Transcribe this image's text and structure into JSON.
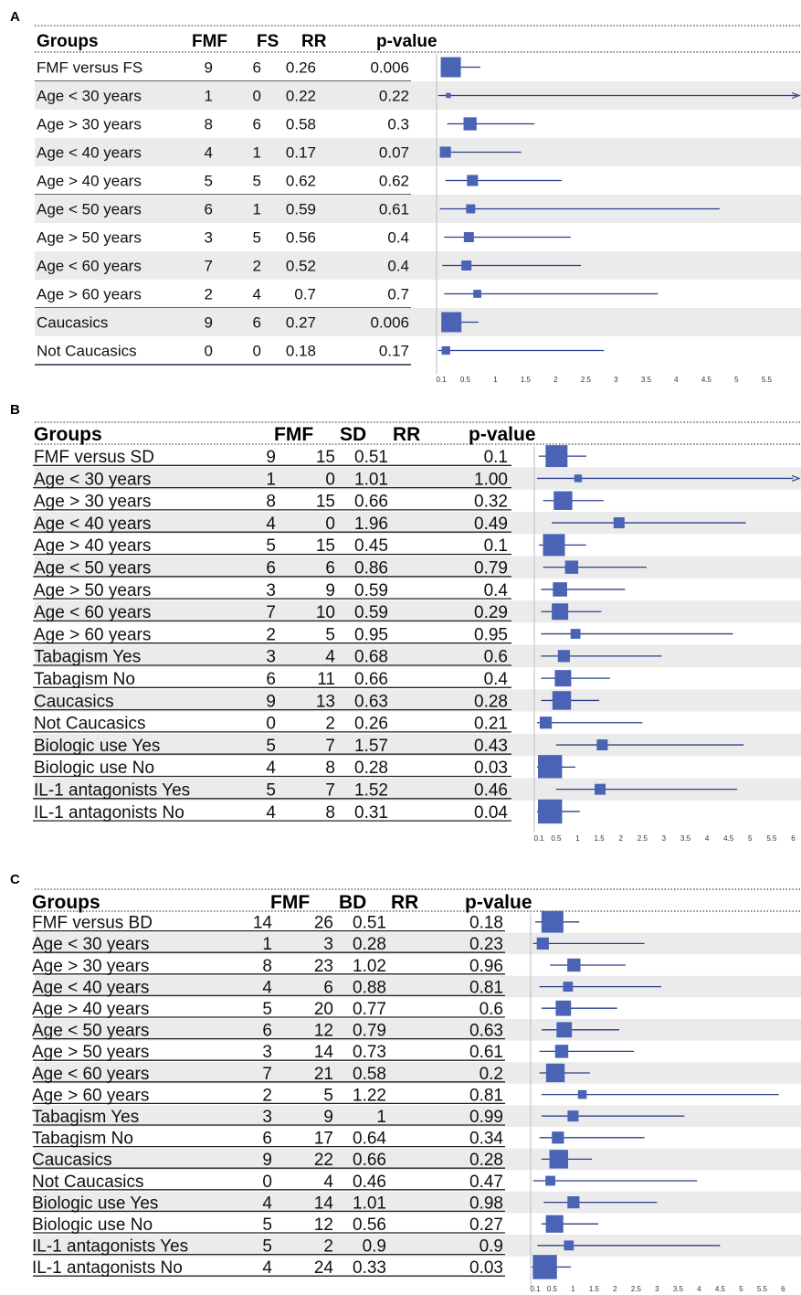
{
  "chart_data": [
    {
      "panel": "A",
      "type": "forest",
      "columns": [
        "Groups",
        "FMF",
        "FS",
        "RR",
        "p-value"
      ],
      "rows": [
        {
          "group": "FMF versus FS",
          "fmf": "9",
          "comp": "6",
          "rr": "0.26",
          "p": "0.006",
          "lo": 0.1,
          "hi": 0.75,
          "w": 1.0
        },
        {
          "group": "Age < 30 years",
          "fmf": "1",
          "comp": "0",
          "rr": "0.22",
          "p": "0.22",
          "lo": 0.05,
          "hi": 6.0,
          "w": 0.25,
          "arrow": true
        },
        {
          "group": "Age > 30 years",
          "fmf": "8",
          "comp": "6",
          "rr": "0.58",
          "p": "0.3",
          "lo": 0.2,
          "hi": 1.65,
          "w": 0.65
        },
        {
          "group": "Age < 40 years",
          "fmf": "4",
          "comp": "1",
          "rr": "0.17",
          "p": "0.07",
          "lo": 0.1,
          "hi": 1.43,
          "w": 0.55
        },
        {
          "group": "Age > 40 years",
          "fmf": "5",
          "comp": "5",
          "rr": "0.62",
          "p": "0.62",
          "lo": 0.17,
          "hi": 2.1,
          "w": 0.55
        },
        {
          "group": "Age < 50 years",
          "fmf": "6",
          "comp": "1",
          "rr": "0.59",
          "p": "0.61",
          "lo": 0.08,
          "hi": 4.72,
          "w": 0.45
        },
        {
          "group": "Age > 50 years",
          "fmf": "3",
          "comp": "5",
          "rr": "0.56",
          "p": "0.4",
          "lo": 0.15,
          "hi": 2.25,
          "w": 0.5
        },
        {
          "group": "Age < 60 years",
          "fmf": "7",
          "comp": "2",
          "rr": "0.52",
          "p": "0.4",
          "lo": 0.12,
          "hi": 2.42,
          "w": 0.5
        },
        {
          "group": "Age > 60 years",
          "fmf": "2",
          "comp": "4",
          "rr": "0.7",
          "p": "0.7",
          "lo": 0.15,
          "hi": 3.7,
          "w": 0.4
        },
        {
          "group": "Caucasics",
          "fmf": "9",
          "comp": "6",
          "rr": "0.27",
          "p": "0.006",
          "lo": 0.1,
          "hi": 0.72,
          "w": 1.0
        },
        {
          "group": "Not Caucasics",
          "fmf": "0",
          "comp": "0",
          "rr": "0.18",
          "p": "0.17",
          "lo": 0.05,
          "hi": 2.8,
          "w": 0.42
        }
      ],
      "ticks": [
        "0.1",
        "0.5",
        "1",
        "1.5",
        "2",
        "2.5",
        "3",
        "3.5",
        "4",
        "4.5",
        "5",
        "5.5"
      ],
      "tick_values": [
        0.1,
        0.5,
        1,
        1.5,
        2,
        2.5,
        3,
        3.5,
        4,
        4.5,
        5,
        5.5
      ],
      "xlim": [
        0,
        6
      ],
      "ref_line": 0.1,
      "style": "light"
    },
    {
      "panel": "B",
      "type": "forest",
      "columns": [
        "Groups",
        "FMF",
        "SD",
        "RR",
        "p-value"
      ],
      "rows": [
        {
          "group": "FMF versus SD",
          "fmf": "9",
          "comp": "15",
          "rr": "0.51",
          "p": "0.1",
          "lo": 0.1,
          "hi": 1.2,
          "w": 1.0
        },
        {
          "group": "Age < 30 years",
          "fmf": "1",
          "comp": "0",
          "rr": "1.01",
          "p": "1.00",
          "lo": 0.05,
          "hi": 6.0,
          "w": 0.35,
          "arrow": true
        },
        {
          "group": "Age > 30 years",
          "fmf": "8",
          "comp": "15",
          "rr": "0.66",
          "p": "0.32",
          "lo": 0.2,
          "hi": 1.6,
          "w": 0.85
        },
        {
          "group": "Age < 40 years",
          "fmf": "4",
          "comp": "0",
          "rr": "1.96",
          "p": "0.49",
          "lo": 0.4,
          "hi": 4.9,
          "w": 0.5
        },
        {
          "group": "Age > 40 years",
          "fmf": "5",
          "comp": "15",
          "rr": "0.45",
          "p": "0.1",
          "lo": 0.1,
          "hi": 1.2,
          "w": 1.0
        },
        {
          "group": "Age < 50 years",
          "fmf": "6",
          "comp": "6",
          "rr": "0.86",
          "p": "0.79",
          "lo": 0.2,
          "hi": 2.6,
          "w": 0.6
        },
        {
          "group": "Age > 50 years",
          "fmf": "3",
          "comp": "9",
          "rr": "0.59",
          "p": "0.4",
          "lo": 0.15,
          "hi": 2.1,
          "w": 0.65
        },
        {
          "group": "Age < 60 years",
          "fmf": "7",
          "comp": "10",
          "rr": "0.59",
          "p": "0.29",
          "lo": 0.15,
          "hi": 1.55,
          "w": 0.75
        },
        {
          "group": "Age > 60 years",
          "fmf": "2",
          "comp": "5",
          "rr": "0.95",
          "p": "0.95",
          "lo": 0.15,
          "hi": 4.6,
          "w": 0.45
        },
        {
          "group": "Tabagism Yes",
          "fmf": "3",
          "comp": "4",
          "rr": "0.68",
          "p": "0.6",
          "lo": 0.15,
          "hi": 2.95,
          "w": 0.55
        },
        {
          "group": "Tabagism No",
          "fmf": "6",
          "comp": "11",
          "rr": "0.66",
          "p": "0.4",
          "lo": 0.15,
          "hi": 1.75,
          "w": 0.75
        },
        {
          "group": "Caucasics",
          "fmf": "9",
          "comp": "13",
          "rr": "0.63",
          "p": "0.28",
          "lo": 0.15,
          "hi": 1.5,
          "w": 0.85
        },
        {
          "group": "Not Caucasics",
          "fmf": "0",
          "comp": "2",
          "rr": "0.26",
          "p": "0.21",
          "lo": 0.05,
          "hi": 2.5,
          "w": 0.55
        },
        {
          "group": "Biologic use Yes",
          "fmf": "5",
          "comp": "7",
          "rr": "1.57",
          "p": "0.43",
          "lo": 0.5,
          "hi": 4.85,
          "w": 0.5
        },
        {
          "group": "Biologic use No",
          "fmf": "4",
          "comp": "8",
          "rr": "0.28",
          "p": "0.03",
          "lo": 0.0,
          "hi": 0.95,
          "w": 1.1
        },
        {
          "group": "IL-1 antagonists Yes",
          "fmf": "5",
          "comp": "7",
          "rr": "1.52",
          "p": "0.46",
          "lo": 0.5,
          "hi": 4.7,
          "w": 0.5
        },
        {
          "group": "IL-1 antagonists No",
          "fmf": "4",
          "comp": "8",
          "rr": "0.31",
          "p": "0.04",
          "lo": 0.0,
          "hi": 1.05,
          "w": 1.1
        }
      ],
      "ticks": [
        "0.1",
        "0.5",
        "1",
        "1.5",
        "2",
        "2.5",
        "3",
        "3.5",
        "4",
        "4.5",
        "5",
        "5.5",
        "6"
      ],
      "tick_values": [
        0.1,
        0.5,
        1,
        1.5,
        2,
        2.5,
        3,
        3.5,
        4,
        4.5,
        5,
        5.5,
        6
      ],
      "xlim": [
        0,
        6
      ],
      "ref_line": 0.1,
      "style": "underlined"
    },
    {
      "panel": "C",
      "type": "forest",
      "columns": [
        "Groups",
        "FMF",
        "BD",
        "RR",
        "p-value"
      ],
      "rows": [
        {
          "group": "FMF versus BD",
          "fmf": "14",
          "comp": "26",
          "rr": "0.51",
          "p": "0.18",
          "lo": 0.1,
          "hi": 1.15,
          "w": 1.0
        },
        {
          "group": "Age < 30 years",
          "fmf": "1",
          "comp": "3",
          "rr": "0.28",
          "p": "0.23",
          "lo": 0.05,
          "hi": 2.7,
          "w": 0.55
        },
        {
          "group": "Age > 30 years",
          "fmf": "8",
          "comp": "23",
          "rr": "1.02",
          "p": "0.96",
          "lo": 0.45,
          "hi": 2.25,
          "w": 0.6
        },
        {
          "group": "Age < 40 years",
          "fmf": "4",
          "comp": "6",
          "rr": "0.88",
          "p": "0.81",
          "lo": 0.2,
          "hi": 3.1,
          "w": 0.45
        },
        {
          "group": "Age > 40 years",
          "fmf": "5",
          "comp": "20",
          "rr": "0.77",
          "p": "0.6",
          "lo": 0.25,
          "hi": 2.05,
          "w": 0.7
        },
        {
          "group": "Age < 50 years",
          "fmf": "6",
          "comp": "12",
          "rr": "0.79",
          "p": "0.63",
          "lo": 0.25,
          "hi": 2.1,
          "w": 0.7
        },
        {
          "group": "Age > 50 years",
          "fmf": "3",
          "comp": "14",
          "rr": "0.73",
          "p": "0.61",
          "lo": 0.2,
          "hi": 2.45,
          "w": 0.6
        },
        {
          "group": "Age < 60 years",
          "fmf": "7",
          "comp": "21",
          "rr": "0.58",
          "p": "0.2",
          "lo": 0.2,
          "hi": 1.4,
          "w": 0.85
        },
        {
          "group": "Age > 60 years",
          "fmf": "2",
          "comp": "5",
          "rr": "1.22",
          "p": "0.81",
          "lo": 0.25,
          "hi": 5.9,
          "w": 0.4
        },
        {
          "group": "Tabagism Yes",
          "fmf": "3",
          "comp": "9",
          "rr": "1",
          "p": "0.99",
          "lo": 0.25,
          "hi": 3.65,
          "w": 0.5
        },
        {
          "group": "Tabagism No",
          "fmf": "6",
          "comp": "17",
          "rr": "0.64",
          "p": "0.34",
          "lo": 0.2,
          "hi": 2.7,
          "w": 0.55
        },
        {
          "group": "Caucasics",
          "fmf": "9",
          "comp": "22",
          "rr": "0.66",
          "p": "0.28",
          "lo": 0.25,
          "hi": 1.45,
          "w": 0.85
        },
        {
          "group": "Not Caucasics",
          "fmf": "0",
          "comp": "4",
          "rr": "0.46",
          "p": "0.47",
          "lo": 0.05,
          "hi": 3.95,
          "w": 0.45
        },
        {
          "group": "Biologic use Yes",
          "fmf": "4",
          "comp": "14",
          "rr": "1.01",
          "p": "0.98",
          "lo": 0.3,
          "hi": 3.0,
          "w": 0.55
        },
        {
          "group": "Biologic use No",
          "fmf": "5",
          "comp": "12",
          "rr": "0.56",
          "p": "0.27",
          "lo": 0.25,
          "hi": 1.6,
          "w": 0.8
        },
        {
          "group": "IL-1 antagonists Yes",
          "fmf": "5",
          "comp": "2",
          "rr": "0.9",
          "p": "0.9",
          "lo": 0.15,
          "hi": 4.5,
          "w": 0.45
        },
        {
          "group": "IL-1 antagonists No",
          "fmf": "4",
          "comp": "24",
          "rr": "0.33",
          "p": "0.03",
          "lo": 0.0,
          "hi": 0.95,
          "w": 1.1
        }
      ],
      "ticks": [
        "0.1",
        "0.5",
        "1",
        "1.5",
        "2",
        "2.5",
        "3",
        "3.5",
        "4",
        "4.5",
        "5",
        "5.5",
        "6"
      ],
      "tick_values": [
        0.1,
        0.5,
        1,
        1.5,
        2,
        2.5,
        3,
        3.5,
        4,
        4.5,
        5,
        5.5,
        6
      ],
      "xlim": [
        0,
        6
      ],
      "ref_line": 0.1,
      "style": "underlined"
    }
  ],
  "colors": {
    "marker": "#4a63b4",
    "line": "#2e3f8c",
    "row_shade": "#ebebeb",
    "text": "#111111",
    "rule": "#2b2b4a"
  }
}
